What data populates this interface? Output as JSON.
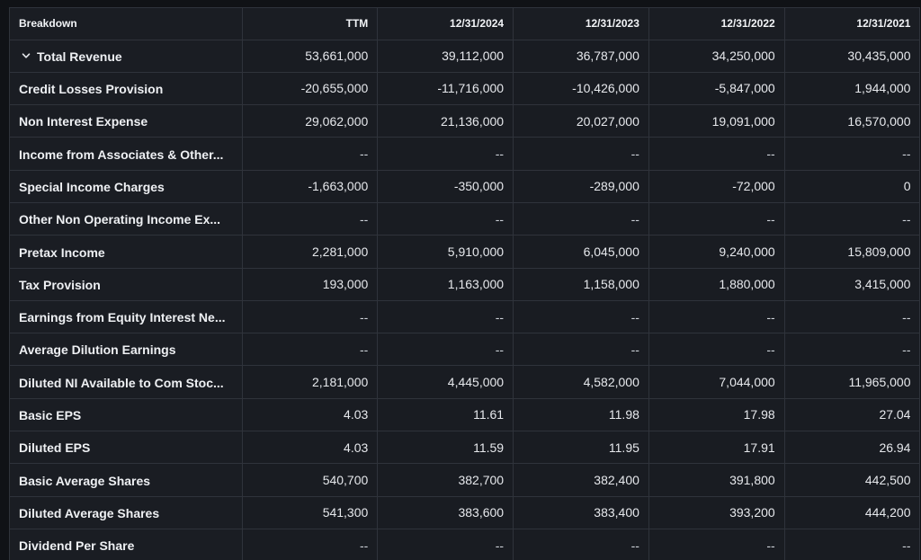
{
  "table": {
    "headers": [
      "Breakdown",
      "TTM",
      "12/31/2024",
      "12/31/2023",
      "12/31/2022",
      "12/31/2021"
    ],
    "rows": [
      {
        "label": "Total Revenue",
        "expandable": true,
        "icon": "chevron-down-icon",
        "values": [
          "53,661,000",
          "39,112,000",
          "36,787,000",
          "34,250,000",
          "30,435,000"
        ]
      },
      {
        "label": "Credit Losses Provision",
        "values": [
          "-20,655,000",
          "-11,716,000",
          "-10,426,000",
          "-5,847,000",
          "1,944,000"
        ]
      },
      {
        "label": "Non Interest Expense",
        "values": [
          "29,062,000",
          "21,136,000",
          "20,027,000",
          "19,091,000",
          "16,570,000"
        ]
      },
      {
        "label": "Income from Associates & Other...",
        "values": [
          "--",
          "--",
          "--",
          "--",
          "--"
        ]
      },
      {
        "label": "Special Income Charges",
        "values": [
          "-1,663,000",
          "-350,000",
          "-289,000",
          "-72,000",
          "0"
        ]
      },
      {
        "label": "Other Non Operating Income Ex...",
        "values": [
          "--",
          "--",
          "--",
          "--",
          "--"
        ]
      },
      {
        "label": "Pretax Income",
        "values": [
          "2,281,000",
          "5,910,000",
          "6,045,000",
          "9,240,000",
          "15,809,000"
        ]
      },
      {
        "label": "Tax Provision",
        "values": [
          "193,000",
          "1,163,000",
          "1,158,000",
          "1,880,000",
          "3,415,000"
        ]
      },
      {
        "label": "Earnings from Equity Interest Ne...",
        "values": [
          "--",
          "--",
          "--",
          "--",
          "--"
        ]
      },
      {
        "label": "Average Dilution Earnings",
        "values": [
          "--",
          "--",
          "--",
          "--",
          "--"
        ]
      },
      {
        "label": "Diluted NI Available to Com Stoc...",
        "values": [
          "2,181,000",
          "4,445,000",
          "4,582,000",
          "7,044,000",
          "11,965,000"
        ]
      },
      {
        "label": "Basic EPS",
        "values": [
          "4.03",
          "11.61",
          "11.98",
          "17.98",
          "27.04"
        ]
      },
      {
        "label": "Diluted EPS",
        "values": [
          "4.03",
          "11.59",
          "11.95",
          "17.91",
          "26.94"
        ]
      },
      {
        "label": "Basic Average Shares",
        "values": [
          "540,700",
          "382,700",
          "382,400",
          "391,800",
          "442,500"
        ]
      },
      {
        "label": "Diluted Average Shares",
        "values": [
          "541,300",
          "383,600",
          "383,400",
          "393,200",
          "444,200"
        ]
      },
      {
        "label": "Dividend Per Share",
        "values": [
          "--",
          "--",
          "--",
          "--",
          "--"
        ]
      }
    ]
  },
  "colors": {
    "background": "#101216",
    "cell": "#191c22",
    "border": "#2f333b",
    "text": "#e8eaee"
  }
}
